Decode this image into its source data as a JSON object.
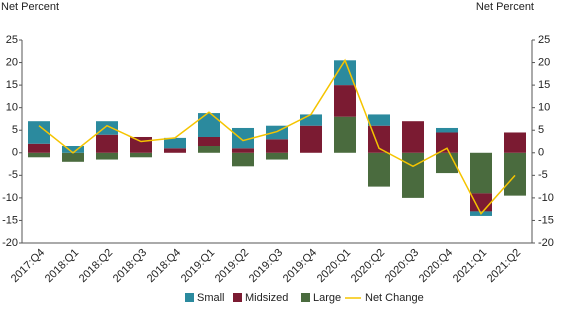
{
  "chart_data": {
    "type": "bar",
    "y_label": "Net Percent",
    "y2_label": "Net Percent",
    "categories": [
      "2017:Q4",
      "2018:Q1",
      "2018:Q2",
      "2018:Q3",
      "2018:Q4",
      "2019:Q1",
      "2019:Q2",
      "2019:Q3",
      "2019:Q4",
      "2020:Q1",
      "2020:Q2",
      "2020:Q3",
      "2020:Q4",
      "2021:Q1",
      "2021:Q2"
    ],
    "series": [
      {
        "name": "Small",
        "color": "#2b8a9e",
        "values": [
          5,
          1.5,
          3,
          0,
          2.3,
          5.3,
          4.5,
          3,
          2.5,
          5.5,
          2.5,
          0,
          1,
          -1,
          0
        ]
      },
      {
        "name": "Midsized",
        "color": "#7b1b32",
        "values": [
          2,
          0,
          4,
          3.5,
          1,
          2,
          1,
          3,
          6,
          7,
          6,
          7,
          4.5,
          -4,
          4.5
        ]
      },
      {
        "name": "Large",
        "color": "#4a6b3e",
        "values": [
          -1,
          -2,
          -1.5,
          -1,
          0,
          1.5,
          -3,
          -1.5,
          0,
          8,
          -7.5,
          -10,
          -4.5,
          -9,
          -9.5
        ]
      }
    ],
    "line": {
      "name": "Net Change",
      "color": "#f5c400",
      "values": [
        6,
        0,
        6,
        2.5,
        3.3,
        9,
        2.7,
        4.7,
        8.5,
        20.5,
        1,
        -3,
        1,
        -13.5,
        -5
      ]
    },
    "ylim": [
      -20,
      25
    ],
    "yticks": [
      -20,
      -15,
      -10,
      -5,
      0,
      5,
      10,
      15,
      20,
      25
    ],
    "y2lim": [
      -20,
      25
    ],
    "y2ticks": [
      -20,
      -15,
      -10,
      -5,
      0,
      5,
      10,
      15,
      20,
      25
    ]
  }
}
